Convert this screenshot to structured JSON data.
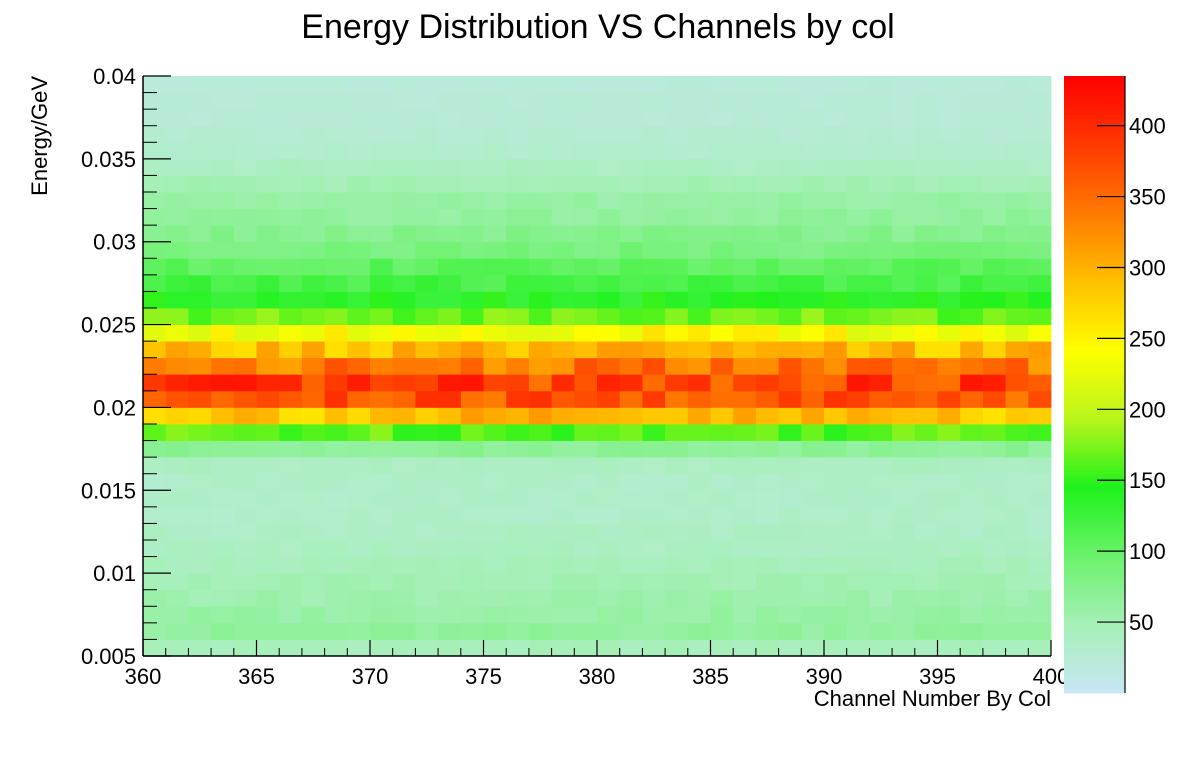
{
  "chart_data": {
    "type": "heatmap",
    "title": "Energy Distribution VS Channels by col",
    "xlabel": "Channel Number By Col",
    "ylabel": "Energy/GeV",
    "xlim": [
      360,
      400
    ],
    "ylim": [
      0.005,
      0.04
    ],
    "x_ticks": [
      360,
      365,
      370,
      375,
      380,
      385,
      390,
      395,
      400
    ],
    "x_tick_labels": [
      "360",
      "365",
      "370",
      "375",
      "380",
      "385",
      "390",
      "395",
      "400"
    ],
    "y_ticks": [
      0.005,
      0.01,
      0.015,
      0.02,
      0.025,
      0.03,
      0.035,
      0.04
    ],
    "y_tick_labels": [
      "0.005",
      "0.01",
      "0.015",
      "0.02",
      "0.025",
      "0.03",
      "0.035",
      "0.04"
    ],
    "x_bins": 40,
    "y_bins": 35,
    "colorbar": {
      "range": [
        0,
        435
      ],
      "ticks": [
        50,
        100,
        150,
        200,
        250,
        300,
        350,
        400
      ],
      "tick_labels": [
        "50",
        "100",
        "150",
        "200",
        "250",
        "300",
        "350",
        "400"
      ],
      "colors": [
        "#c9e6f6",
        "#a6f0b8",
        "#6cf26c",
        "#1ef21c",
        "#b9f51c",
        "#ffff00",
        "#ffc000",
        "#ff7a00",
        "#ff3a00",
        "#ff0000"
      ]
    },
    "grid": false,
    "legend": "none",
    "row_profile": [
      {
        "y": 0.0055,
        "count": 45
      },
      {
        "y": 0.0065,
        "count": 65
      },
      {
        "y": 0.0075,
        "count": 60
      },
      {
        "y": 0.0085,
        "count": 55
      },
      {
        "y": 0.0095,
        "count": 50
      },
      {
        "y": 0.0105,
        "count": 45
      },
      {
        "y": 0.0115,
        "count": 40
      },
      {
        "y": 0.0125,
        "count": 38
      },
      {
        "y": 0.0135,
        "count": 35
      },
      {
        "y": 0.0145,
        "count": 35
      },
      {
        "y": 0.0155,
        "count": 35
      },
      {
        "y": 0.0165,
        "count": 40
      },
      {
        "y": 0.0175,
        "count": 70
      },
      {
        "y": 0.0185,
        "count": 165
      },
      {
        "y": 0.0195,
        "count": 290
      },
      {
        "y": 0.0205,
        "count": 365
      },
      {
        "y": 0.0215,
        "count": 380
      },
      {
        "y": 0.0225,
        "count": 340
      },
      {
        "y": 0.0235,
        "count": 290
      },
      {
        "y": 0.0245,
        "count": 240
      },
      {
        "y": 0.0255,
        "count": 170
      },
      {
        "y": 0.0265,
        "count": 140
      },
      {
        "y": 0.0275,
        "count": 120
      },
      {
        "y": 0.0285,
        "count": 105
      },
      {
        "y": 0.0295,
        "count": 85
      },
      {
        "y": 0.0305,
        "count": 75
      },
      {
        "y": 0.0315,
        "count": 65
      },
      {
        "y": 0.0325,
        "count": 60
      },
      {
        "y": 0.0335,
        "count": 50
      },
      {
        "y": 0.0345,
        "count": 40
      },
      {
        "y": 0.0355,
        "count": 32
      },
      {
        "y": 0.0365,
        "count": 28
      },
      {
        "y": 0.0375,
        "count": 25
      },
      {
        "y": 0.0385,
        "count": 25
      },
      {
        "y": 0.0395,
        "count": 22
      }
    ],
    "variation_amplitude": 0.1
  }
}
